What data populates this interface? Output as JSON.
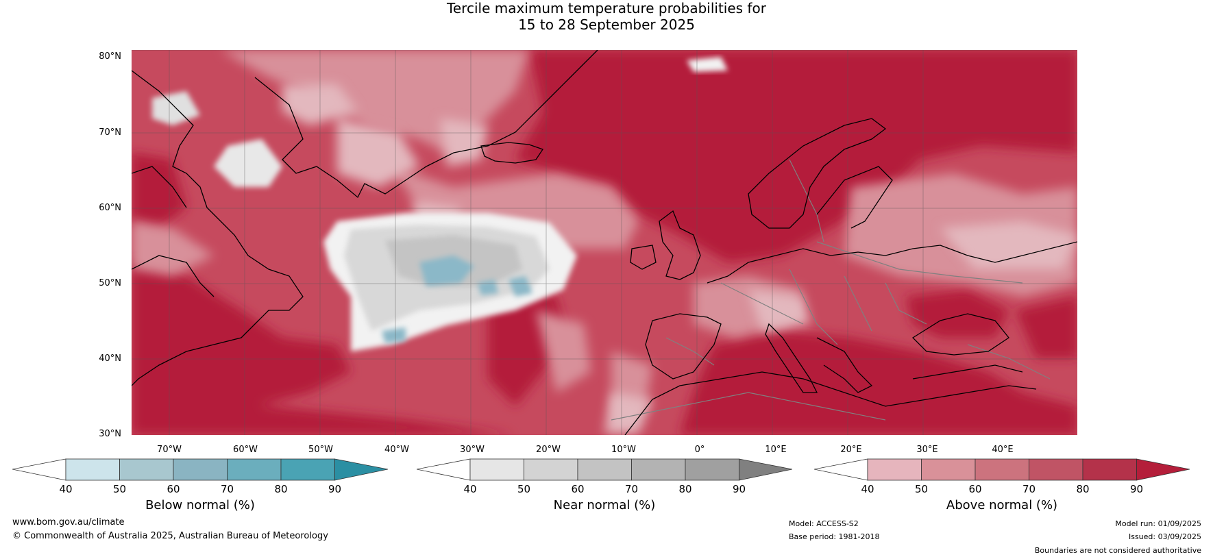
{
  "title": {
    "line1": "Tercile maximum temperature probabilities for",
    "line2": "15 to 28 September 2025"
  },
  "map": {
    "latitude_labels": [
      "80°N",
      "70°N",
      "60°N",
      "50°N",
      "40°N",
      "30°N"
    ],
    "longitude_labels": [
      "70°W",
      "60°W",
      "50°W",
      "40°W",
      "30°W",
      "20°W",
      "10°W",
      "0°",
      "10°E",
      "20°E",
      "30°E",
      "40°E"
    ],
    "colors": {
      "ocean_base": "#c64a5e",
      "deep_above": "#b41e3a",
      "light_above": "#d8909a",
      "pale_above": "#e3b8be",
      "near_normal_white": "#f2f2f2",
      "near_normal_light": "#d8d8d8",
      "near_normal_mid": "#c4c4c4",
      "below_normal": "#8bb8c8",
      "coastline": "#000000",
      "borders": "#808080"
    }
  },
  "colorbars": [
    {
      "title": "Below normal (%)",
      "ticks": [
        "40",
        "50",
        "60",
        "70",
        "80",
        "90"
      ],
      "colors": [
        "#ffffff",
        "#cde4eb",
        "#a8c7cf",
        "#8ab4c2",
        "#6baebd",
        "#4aa3b4",
        "#2b8fa3"
      ]
    },
    {
      "title": "Near normal (%)",
      "ticks": [
        "40",
        "50",
        "60",
        "70",
        "80",
        "90"
      ],
      "colors": [
        "#ffffff",
        "#e6e6e6",
        "#d3d3d3",
        "#c3c3c3",
        "#b3b3b3",
        "#a0a0a0",
        "#808080"
      ]
    },
    {
      "title": "Above normal (%)",
      "ticks": [
        "40",
        "50",
        "60",
        "70",
        "80",
        "90"
      ],
      "colors": [
        "#ffffff",
        "#e6b5bd",
        "#d99199",
        "#cc737e",
        "#c05465",
        "#b4324a",
        "#b41e3a"
      ]
    }
  ],
  "footer": {
    "website": "www.bom.gov.au/climate",
    "copyright": "© Commonwealth of Australia 2025, Australian Bureau of Meteorology",
    "model": "Model: ACCESS-S2",
    "base_period": "Base period: 1981-2018",
    "model_run": "Model run: 01/09/2025",
    "issued": "Issued: 03/09/2025",
    "disclaimer": "Boundaries are not considered authoritative"
  }
}
